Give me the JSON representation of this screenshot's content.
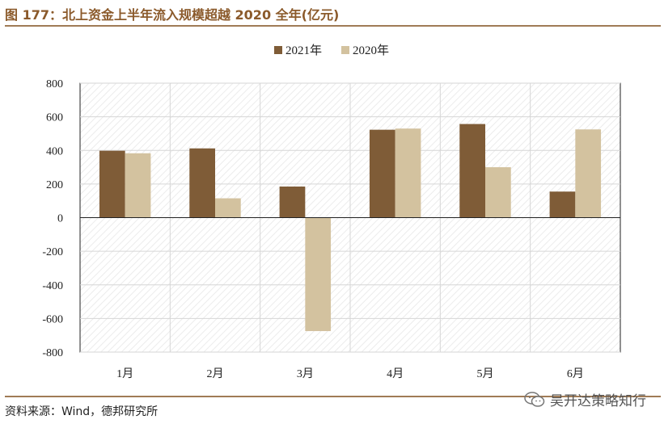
{
  "header": {
    "title": "图 177：北上资金上半年流入规模超越 2020 全年(亿元)"
  },
  "footer": {
    "source": "资料来源：Wind，德邦研究所",
    "watermark": "吴开达策略知行",
    "watermark_icon": "wechat-icon"
  },
  "colors": {
    "series_2021": "#7f5c37",
    "series_2020": "#d3c29f",
    "accent": "#8b5a2b"
  },
  "chart_data": {
    "type": "bar",
    "categories": [
      "1月",
      "2月",
      "3月",
      "4月",
      "5月",
      "6月"
    ],
    "series": [
      {
        "name": "2021年",
        "values": [
          398,
          412,
          185,
          523,
          557,
          155
        ]
      },
      {
        "name": "2020年",
        "values": [
          383,
          115,
          -675,
          530,
          300,
          525
        ]
      }
    ],
    "ylim": [
      -800,
      800
    ],
    "yticks": [
      "800",
      "600",
      "400",
      "200",
      "0",
      "-200",
      "-400",
      "-600",
      "-800"
    ],
    "grid": true,
    "legend_position": "top-center"
  }
}
